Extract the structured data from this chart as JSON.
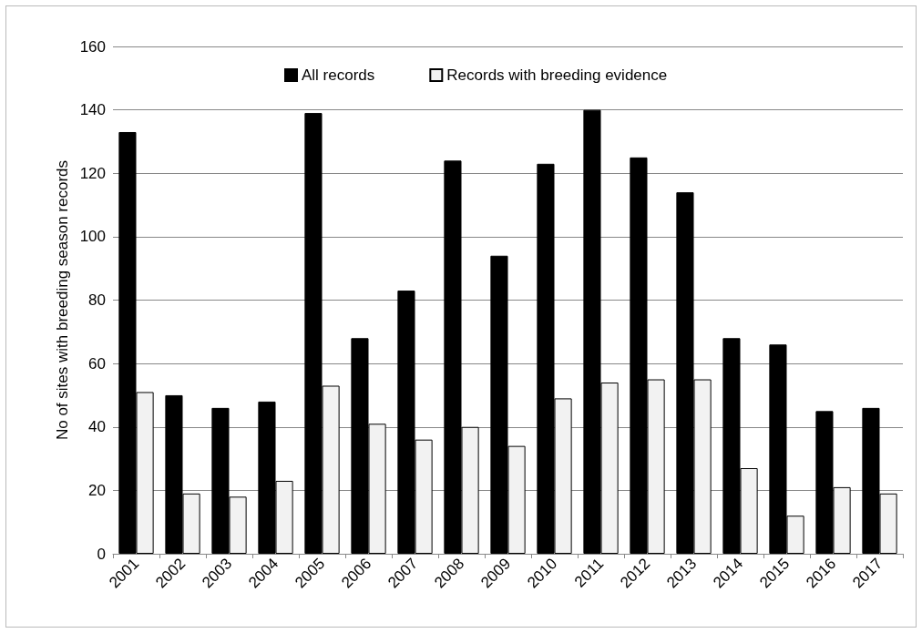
{
  "chart_data": {
    "type": "bar",
    "ylabel": "No of sites with breeding season records",
    "categories": [
      "2001",
      "2002",
      "2003",
      "2004",
      "2005",
      "2006",
      "2007",
      "2008",
      "2009",
      "2010",
      "2011",
      "2012",
      "2013",
      "2014",
      "2015",
      "2016",
      "2017"
    ],
    "series": [
      {
        "name": "All records",
        "color": "#000000",
        "values": [
          133,
          50,
          46,
          48,
          139,
          68,
          83,
          124,
          94,
          123,
          140,
          125,
          114,
          68,
          66,
          45,
          46
        ]
      },
      {
        "name": "Records with breeding evidence",
        "color": "#f2f2f2",
        "values": [
          51,
          19,
          18,
          23,
          53,
          41,
          36,
          40,
          34,
          49,
          54,
          55,
          55,
          27,
          12,
          21,
          19
        ]
      }
    ],
    "ylim": [
      0,
      160
    ],
    "yticks": [
      0,
      20,
      40,
      60,
      80,
      100,
      120,
      140,
      160
    ],
    "grid": "y",
    "legend": "top"
  }
}
